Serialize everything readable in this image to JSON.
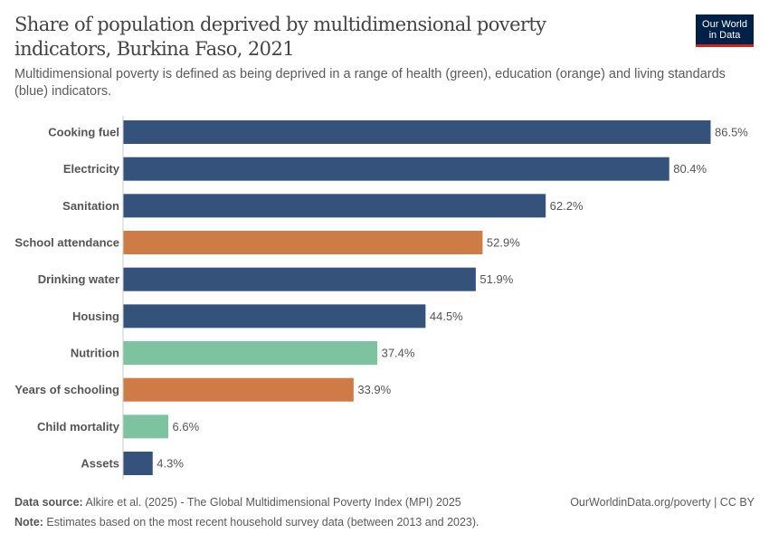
{
  "header": {
    "title": "Share of population deprived by multidimensional poverty indicators, Burkina Faso, 2021",
    "subtitle": "Multidimensional poverty is defined as being deprived in a range of health (green), education (orange) and living standards (blue) indicators.",
    "logo_line1": "Our World",
    "logo_line2": "in Data"
  },
  "chart_data": {
    "type": "bar",
    "orientation": "horizontal",
    "categories": [
      "Cooking fuel",
      "Electricity",
      "Sanitation",
      "School attendance",
      "Drinking water",
      "Housing",
      "Nutrition",
      "Years of schooling",
      "Child mortality",
      "Assets"
    ],
    "values": [
      86.5,
      80.4,
      62.2,
      52.9,
      51.9,
      44.5,
      37.4,
      33.9,
      6.6,
      4.3
    ],
    "labels": [
      "86.5%",
      "80.4%",
      "62.2%",
      "52.9%",
      "51.9%",
      "44.5%",
      "37.4%",
      "33.9%",
      "6.6%",
      "4.3%"
    ],
    "groups": [
      "living standards",
      "living standards",
      "living standards",
      "education",
      "living standards",
      "living standards",
      "health",
      "education",
      "health",
      "living standards"
    ],
    "colors": {
      "living standards": "#35537a",
      "education": "#cf7b46",
      "health": "#7dc3a0"
    },
    "unit": "%",
    "grid": false
  },
  "footer": {
    "source_label": "Data source:",
    "source_text": " Alkire et al. (2025) - The Global Multidimensional Poverty Index (MPI) 2025",
    "note_label": "Note:",
    "note_text": " Estimates based on the most recent household survey data (between 2013 and 2023).",
    "credit": "OurWorldinData.org/poverty | CC BY"
  }
}
